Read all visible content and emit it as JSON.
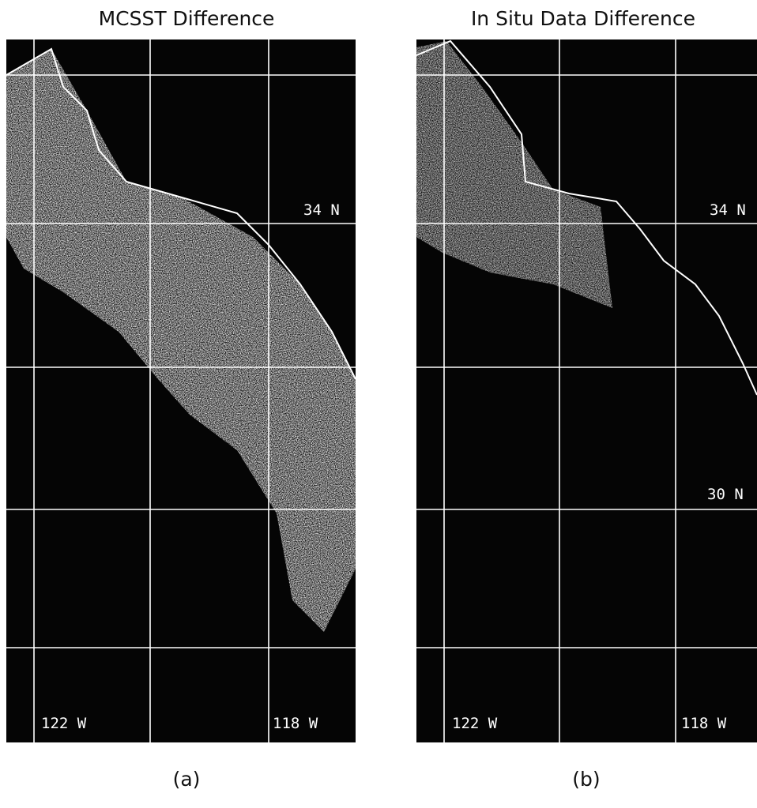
{
  "panels": [
    {
      "title": "MCSST Difference",
      "labels": [
        "34 N",
        "122 W",
        "118 W"
      ],
      "caption": "(a)"
    },
    {
      "title": "In Situ Data Difference",
      "labels": [
        "34 N",
        "30 N",
        "122 W",
        "118 W"
      ],
      "caption": "(b)"
    }
  ]
}
